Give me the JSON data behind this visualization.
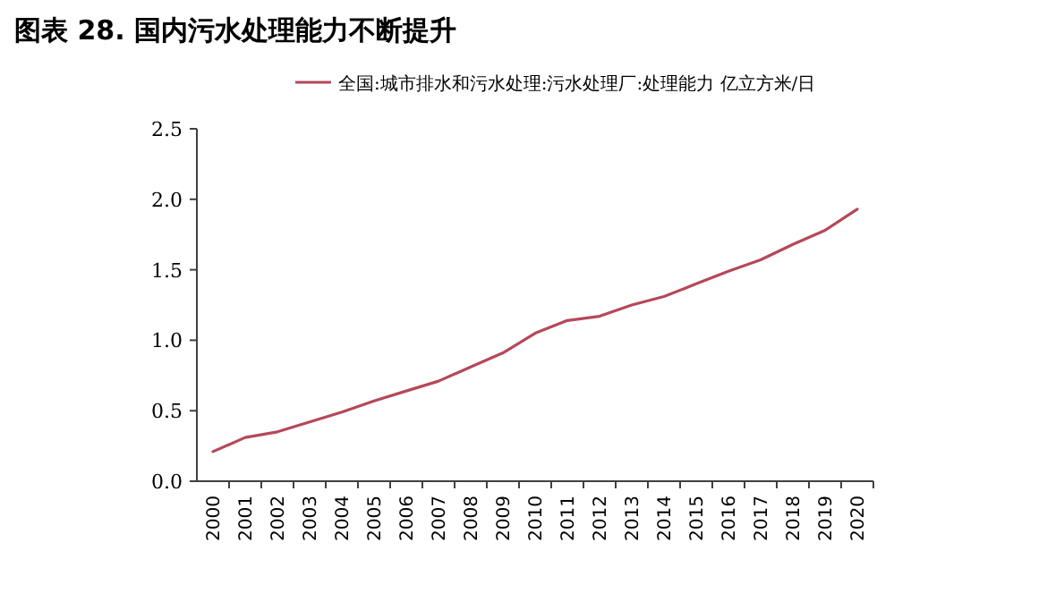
{
  "chart_data": {
    "type": "line",
    "title": "图表 28. 国内污水处理能力不断提升",
    "categories": [
      "2000",
      "2001",
      "2002",
      "2003",
      "2004",
      "2005",
      "2006",
      "2007",
      "2008",
      "2009",
      "2010",
      "2011",
      "2012",
      "2013",
      "2014",
      "2015",
      "2016",
      "2017",
      "2018",
      "2019",
      "2020"
    ],
    "series": [
      {
        "name": "全国:城市排水和污水处理:污水处理厂:处理能力 亿立方米/日",
        "color": "#b5485a",
        "values": [
          0.21,
          0.31,
          0.35,
          0.42,
          0.49,
          0.57,
          0.64,
          0.71,
          0.81,
          0.91,
          1.05,
          1.14,
          1.17,
          1.25,
          1.31,
          1.4,
          1.49,
          1.57,
          1.68,
          1.78,
          1.93
        ]
      }
    ],
    "ylim": [
      0,
      2.5
    ],
    "yticks": [
      {
        "value": 0,
        "label": "0.0"
      },
      {
        "value": 0.5,
        "label": "0.5"
      },
      {
        "value": 1,
        "label": "1.0"
      },
      {
        "value": 1.5,
        "label": "1.5"
      },
      {
        "value": 2,
        "label": "2.0"
      },
      {
        "value": 2.5,
        "label": "2.5"
      }
    ],
    "legend": "top",
    "grid": false
  }
}
